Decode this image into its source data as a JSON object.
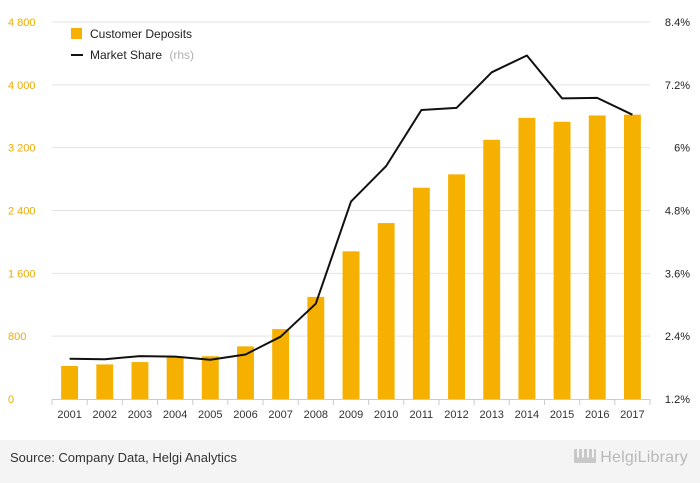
{
  "chart_data": {
    "type": "bar+line",
    "categories": [
      "2001",
      "2002",
      "2003",
      "2004",
      "2005",
      "2006",
      "2007",
      "2008",
      "2009",
      "2010",
      "2011",
      "2012",
      "2013",
      "2014",
      "2015",
      "2016",
      "2017"
    ],
    "series": [
      {
        "name": "Customer Deposits",
        "type": "bar",
        "axis": "left",
        "color": "#f5b000",
        "values": [
          420,
          440,
          470,
          530,
          545,
          670,
          890,
          1300,
          1880,
          2240,
          2690,
          2860,
          3300,
          3580,
          3530,
          3610,
          3620
        ]
      },
      {
        "name": "Market Share",
        "type": "line",
        "axis": "right",
        "color": "#111111",
        "values": [
          1.97,
          1.96,
          2.02,
          2.01,
          1.95,
          2.05,
          2.39,
          3.02,
          4.97,
          5.65,
          6.72,
          6.76,
          7.44,
          7.76,
          6.94,
          6.95,
          6.63
        ]
      }
    ],
    "legend": [
      {
        "label": "Customer Deposits",
        "suffix": ""
      },
      {
        "label": "Market Share",
        "suffix": "(rhs)"
      }
    ],
    "legend_position": "top-left",
    "y_left": {
      "ylim": [
        0,
        4800
      ],
      "ticks": [
        "0",
        "800",
        "1 600",
        "2 400",
        "3 200",
        "4 000",
        "4 800"
      ],
      "tick_values": [
        0,
        800,
        1600,
        2400,
        3200,
        4000,
        4800
      ],
      "color": "#f0ab00"
    },
    "y_right": {
      "ylim": [
        1.2,
        8.4
      ],
      "ticks": [
        "1.2%",
        "2.4%",
        "3.6%",
        "4.8%",
        "6%",
        "7.2%",
        "8.4%"
      ],
      "tick_values": [
        1.2,
        2.4,
        3.6,
        4.8,
        6.0,
        7.2,
        8.4
      ]
    },
    "grid": true
  },
  "footer": {
    "source": "Source: Company Data, Helgi Analytics",
    "brand": "HelgiLibrary"
  }
}
